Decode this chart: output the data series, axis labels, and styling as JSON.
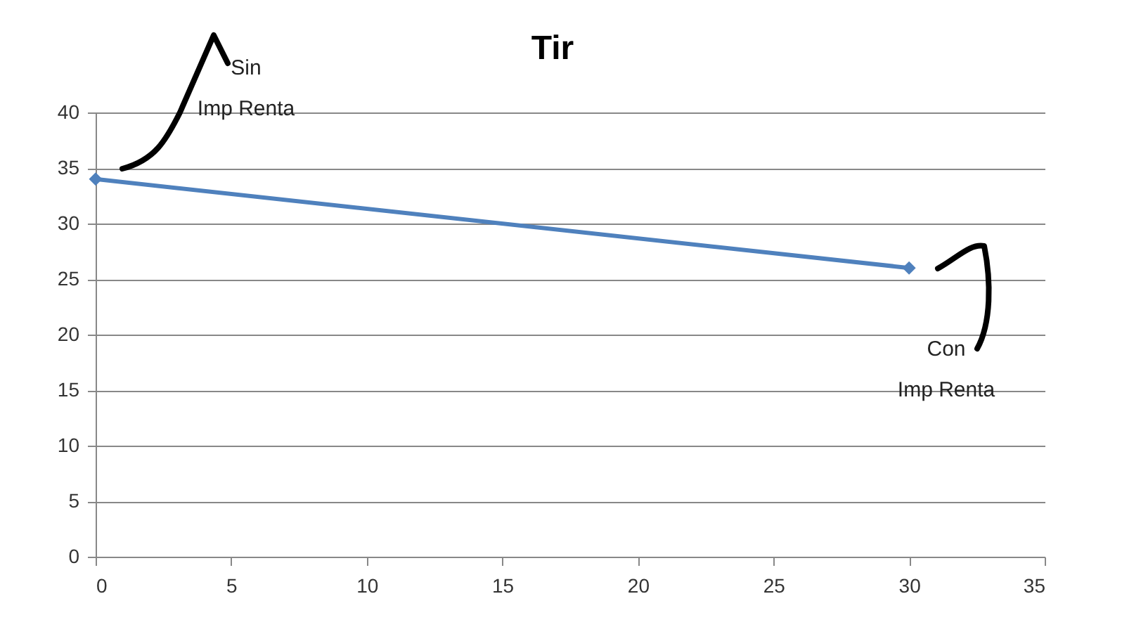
{
  "chart_data": {
    "type": "line",
    "title": "Tir",
    "x": [
      0,
      30
    ],
    "series": [
      {
        "color": "#4f81bd",
        "values": [
          34,
          26
        ]
      }
    ],
    "xlim": [
      0,
      35
    ],
    "xticks": [
      0,
      5,
      10,
      15,
      20,
      25,
      30,
      35
    ],
    "ylim": [
      0,
      40
    ],
    "yticks": [
      0,
      5,
      10,
      15,
      20,
      25,
      30,
      35,
      40
    ],
    "grid": "y",
    "marker": "diamond",
    "annotations": [
      "Sin Imp Renta",
      "Con Imp Renta"
    ]
  }
}
